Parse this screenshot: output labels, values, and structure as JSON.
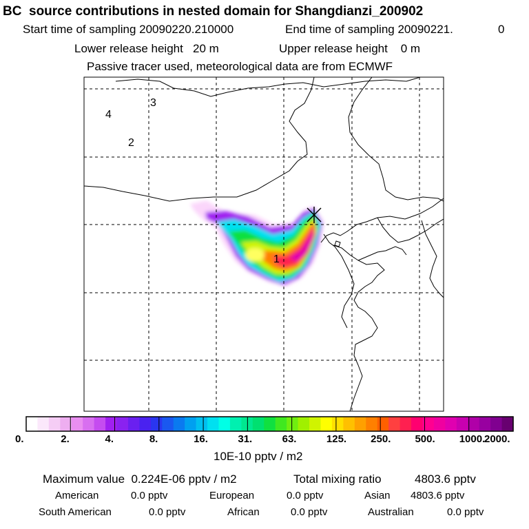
{
  "chart_data": {
    "type": "heatmap",
    "title": "BC  source contributions in nested domain for Shangdianzi_200902",
    "start_label": "Start time of sampling 20090220.210000",
    "end_label": "End time of sampling 20090221.",
    "end_value": "0",
    "lower_release": "Lower release height   20 m",
    "upper_release": "Upper release height    0 m",
    "tracer_note": "Passive tracer used, meteorological data are from ECMWF",
    "region_labels": [
      "1",
      "2",
      "3",
      "4"
    ],
    "colorbar": {
      "tick_labels": [
        "0.",
        "2.",
        "4.",
        "8.",
        "16.",
        "31.",
        "63.",
        "125.",
        "250.",
        "500.",
        "1000.",
        "2000."
      ],
      "unit": "10E-10 pptv / m2",
      "colors": [
        "#ffffff",
        "#fbe8fb",
        "#f5cdf5",
        "#eeaef0",
        "#e98ef0",
        "#d86ff0",
        "#c54cf0",
        "#a020f0",
        "#8a22f0",
        "#6a20f0",
        "#4a22f0",
        "#2a36f0",
        "#1a58f0",
        "#0a7af0",
        "#00a0f0",
        "#00c0f0",
        "#00e0f0",
        "#00ffe6",
        "#00f0b0",
        "#00e890",
        "#00e070",
        "#10e040",
        "#40e820",
        "#70ee10",
        "#a0f000",
        "#d0f400",
        "#ffff00",
        "#ffe000",
        "#ffc000",
        "#ffa000",
        "#ff8000",
        "#ff6000",
        "#ff4040",
        "#ff2050",
        "#ff0070",
        "#ff0090",
        "#f000a0",
        "#e000b0",
        "#c800b0",
        "#b000a8",
        "#9800a0",
        "#800090",
        "#680070"
      ]
    },
    "summary": {
      "max_label": "Maximum value  0.224E-06 pptv / m2",
      "total_label": "Total mixing ratio",
      "total_value": "4803.6 pptv",
      "regions": [
        {
          "name": "American",
          "value": "0.0 pptv"
        },
        {
          "name": "European",
          "value": "0.0 pptv"
        },
        {
          "name": "Asian",
          "value": "4803.6 pptv"
        },
        {
          "name": "South American",
          "value": "0.0 pptv"
        },
        {
          "name": "African",
          "value": "0.0 pptv"
        },
        {
          "name": "Australian",
          "value": "0.0 pptv"
        }
      ]
    }
  }
}
